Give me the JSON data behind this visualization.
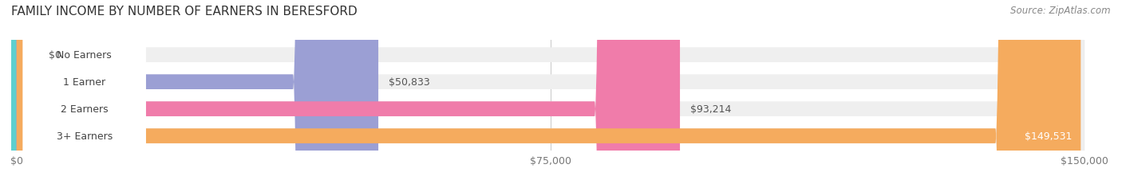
{
  "title": "FAMILY INCOME BY NUMBER OF EARNERS IN BERESFORD",
  "source": "Source: ZipAtlas.com",
  "categories": [
    "No Earners",
    "1 Earner",
    "2 Earners",
    "3+ Earners"
  ],
  "values": [
    0,
    50833,
    93214,
    149531
  ],
  "max_value": 150000,
  "bar_colors": [
    "#5ecfcf",
    "#9b9fd4",
    "#f07caa",
    "#f5ab5e"
  ],
  "bar_bg_color": "#efefef",
  "value_labels": [
    "$0",
    "$50,833",
    "$93,214",
    "$149,531"
  ],
  "xtick_labels": [
    "$0",
    "$75,000",
    "$150,000"
  ],
  "xtick_values": [
    0,
    75000,
    150000
  ],
  "background_color": "#ffffff",
  "title_color": "#333333",
  "source_color": "#888888",
  "title_fontsize": 11,
  "source_fontsize": 8.5,
  "bar_label_fontsize": 9,
  "value_fontsize": 9,
  "xtick_fontsize": 9
}
